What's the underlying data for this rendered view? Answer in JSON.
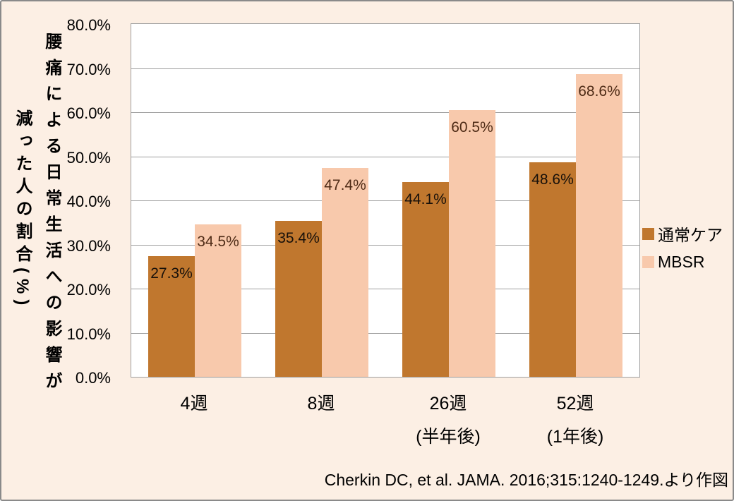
{
  "frame": {
    "background_color": "#FCEFE4",
    "border_color": "#8A8A8A"
  },
  "chart_data": {
    "type": "bar",
    "title": "",
    "ylabel_line1": "腰痛による日常生活への影響が",
    "ylabel_line2": "減った人の割合(%)",
    "categories": [
      "4週",
      "8週",
      "26週",
      "52週"
    ],
    "category_sublabels": [
      "",
      "",
      "(半年後)",
      "(1年後)"
    ],
    "series": [
      {
        "name": "通常ケア",
        "color": "#C0772E",
        "label_color": "#17100A",
        "values": [
          27.3,
          35.4,
          44.1,
          48.6
        ]
      },
      {
        "name": "MBSR",
        "color": "#F8C9AC",
        "label_color": "#4E2B16",
        "values": [
          34.5,
          47.4,
          60.5,
          68.6
        ]
      }
    ],
    "value_suffix": "%",
    "data_labels": [
      [
        "27.3%",
        "35.4%",
        "44.1%",
        "48.6%"
      ],
      [
        "34.5%",
        "47.4%",
        "60.5%",
        "68.6%"
      ]
    ],
    "ylim": [
      0,
      80
    ],
    "ytick_step": 10,
    "yticks": [
      "80.0%",
      "70.0%",
      "60.0%",
      "50.0%",
      "40.0%",
      "30.0%",
      "20.0%",
      "10.0%",
      "0.0%"
    ],
    "grid": true,
    "gridline_color": "#9E9E9E",
    "plot_background": "#FFFFFF",
    "legend_position": "right"
  },
  "source_note": "Cherkin DC, et al. JAMA. 2016;315:1240-1249.より作図"
}
